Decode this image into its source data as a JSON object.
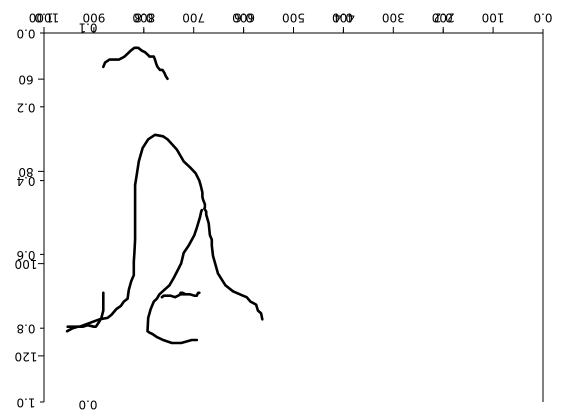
{
  "chart_data": {
    "type": "line",
    "mirrored": true,
    "grid": false,
    "xlim": [
      0,
      1
    ],
    "ylim": [
      0,
      1
    ],
    "ticks": {
      "unit_top": [
        "0.0",
        "0.2",
        "0.4",
        "0.6",
        "0.8",
        "1.0"
      ],
      "unit_left": [
        "0.0",
        "0.2",
        "0.4",
        "0.6",
        "0.8",
        "1.0"
      ],
      "px_top": [
        "100",
        "200",
        "300",
        "400",
        "500",
        "600",
        "700",
        "800",
        "900",
        "1000"
      ],
      "px_left": [
        "60",
        "80",
        "100",
        "120"
      ],
      "stray_bottom": "0.0",
      "stray_top": "0.1"
    },
    "outer": {
      "xlim": [
        0,
        1000
      ],
      "ylim": [
        50,
        130
      ]
    },
    "series": [
      {
        "points": [
          [
            450,
            56
          ],
          [
            452,
            60
          ],
          [
            457,
            62
          ],
          [
            460,
            66
          ],
          [
            469,
            68
          ],
          [
            475,
            71
          ],
          [
            481,
            72
          ],
          [
            497,
            75
          ],
          [
            509,
            79
          ],
          [
            521,
            87
          ],
          [
            529,
            99
          ],
          [
            531,
            106
          ],
          [
            531,
            110
          ],
          [
            534,
            113
          ],
          [
            536,
            121
          ],
          [
            540,
            127
          ],
          [
            540,
            129
          ],
          [
            543,
            131
          ],
          [
            542,
            132
          ]
        ]
      },
      {
        "points": [
          [
            542,
            133
          ],
          [
            542,
            134
          ],
          [
            545,
            137
          ],
          [
            546,
            139
          ],
          [
            546,
            142
          ],
          [
            549,
            147
          ],
          [
            551,
            150
          ],
          [
            551,
            150
          ],
          [
            557,
            155
          ],
          [
            566,
            159
          ],
          [
            576,
            163
          ],
          [
            587,
            171
          ],
          [
            602,
            178
          ],
          [
            609,
            180
          ],
          [
            622,
            181
          ],
          [
            633,
            178
          ],
          [
            642,
            172
          ],
          [
            648,
            163
          ],
          [
            652,
            152
          ],
          [
            654,
            147
          ],
          [
            654,
            140
          ],
          [
            654,
            133
          ],
          [
            654,
            124
          ],
          [
            654,
            118
          ],
          [
            654,
            110
          ],
          [
            655,
            101
          ],
          [
            656,
            95
          ],
          [
            656,
            86
          ],
          [
            660,
            82
          ],
          [
            664,
            76
          ],
          [
            666,
            70
          ],
          [
            672,
            68
          ],
          [
            677,
            65
          ],
          [
            684,
            63
          ],
          [
            692,
            59
          ],
          [
            698,
            57
          ],
          [
            711,
            56
          ],
          [
            724,
            54
          ],
          [
            743,
            51
          ],
          [
            762,
            51
          ]
        ]
      },
      {
        "points": [
          [
            763,
            48
          ],
          [
            754,
            50
          ],
          [
            746,
            51
          ],
          [
            738,
            51
          ],
          [
            730,
            52
          ],
          [
            720,
            51
          ],
          [
            717,
            51
          ],
          [
            712,
            54
          ],
          [
            708,
            57
          ],
          [
            705,
            62
          ],
          [
            705,
            67
          ],
          [
            705,
            72
          ],
          [
            705,
            74
          ]
        ]
      },
      {
        "points": [
          [
            602,
            219
          ],
          [
            605,
            221
          ],
          [
            607,
            223
          ],
          [
            610,
            225
          ],
          [
            614,
            225
          ],
          [
            618,
            227
          ],
          [
            620,
            229
          ],
          [
            622,
            232
          ],
          [
            624,
            234
          ],
          [
            631,
            234
          ],
          [
            633,
            235
          ],
          [
            638,
            237
          ],
          [
            643,
            238
          ],
          [
            649,
            240
          ],
          [
            655,
            240
          ],
          [
            661,
            238
          ],
          [
            666,
            236
          ],
          [
            671,
            234
          ],
          [
            680,
            232
          ],
          [
            685,
            232
          ],
          [
            695,
            232
          ],
          [
            702,
            230
          ],
          [
            705,
            227
          ]
        ]
      },
      {
        "points": [
          [
            555,
            42
          ],
          [
            563,
            42
          ],
          [
            580,
            40
          ],
          [
            595,
            40
          ],
          [
            609,
            42
          ],
          [
            619,
            44
          ],
          [
            626,
            46
          ],
          [
            631,
            47
          ],
          [
            634,
            48
          ],
          [
            633,
            57
          ],
          [
            629,
            63
          ],
          [
            624,
            68
          ],
          [
            619,
            70
          ],
          [
            615,
            73
          ],
          [
            607,
            76
          ],
          [
            599,
            79
          ],
          [
            592,
            84
          ],
          [
            586,
            89
          ],
          [
            580,
            94
          ],
          [
            576,
            101
          ],
          [
            568,
            106
          ],
          [
            559,
            113
          ],
          [
            555,
            118
          ],
          [
            550,
            125
          ],
          [
            548,
            129
          ],
          [
            547,
            130
          ]
        ]
      },
      {
        "points": [
          [
            551,
            74
          ],
          [
            553,
            74
          ],
          [
            555,
            72
          ],
          [
            559,
            72
          ],
          [
            566,
            73
          ],
          [
            573,
            73
          ],
          [
            578,
            74
          ],
          [
            581,
            74
          ],
          [
            582,
            73
          ]
        ]
      },
      {
        "points": [
          [
            574,
            73
          ],
          [
            578,
            73
          ],
          [
            581,
            73
          ],
          [
            585,
            72
          ],
          [
            590,
            71
          ],
          [
            597,
            72
          ],
          [
            604,
            72
          ],
          [
            608,
            72
          ],
          [
            611,
            71
          ]
        ]
      }
    ]
  }
}
